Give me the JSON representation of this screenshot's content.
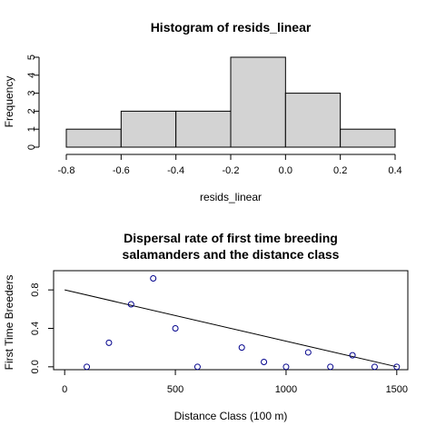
{
  "chart_data": [
    {
      "type": "histogram",
      "title": "Histogram of resids_linear",
      "xlabel": "resids_linear",
      "ylabel": "Frequency",
      "bins": [
        {
          "from": -0.8,
          "to": -0.6,
          "count": 1
        },
        {
          "from": -0.6,
          "to": -0.4,
          "count": 2
        },
        {
          "from": -0.4,
          "to": -0.2,
          "count": 2
        },
        {
          "from": -0.2,
          "to": 0.0,
          "count": 5
        },
        {
          "from": 0.0,
          "to": 0.2,
          "count": 3
        },
        {
          "from": 0.2,
          "to": 0.4,
          "count": 1
        }
      ],
      "xlim": [
        -0.8,
        0.4
      ],
      "ylim": [
        0,
        5
      ],
      "x_ticks": [
        "-0.8",
        "-0.6",
        "-0.4",
        "-0.2",
        "0.0",
        "0.2",
        "0.4"
      ],
      "y_ticks": [
        "0",
        "1",
        "2",
        "3",
        "4",
        "5"
      ],
      "bar_color": "#d3d3d3",
      "grid": false
    },
    {
      "type": "scatter",
      "title_lines": [
        "Dispersal rate of first time breeding",
        "salamanders and the distance class"
      ],
      "xlabel": "Distance Class (100 m)",
      "ylabel": "First Time Breeders",
      "points": [
        {
          "x": 100,
          "y": 0.0
        },
        {
          "x": 200,
          "y": 0.25
        },
        {
          "x": 300,
          "y": 0.65
        },
        {
          "x": 400,
          "y": 0.92
        },
        {
          "x": 500,
          "y": 0.4
        },
        {
          "x": 600,
          "y": 0.0
        },
        {
          "x": 800,
          "y": 0.2
        },
        {
          "x": 900,
          "y": 0.05
        },
        {
          "x": 1000,
          "y": 0.0
        },
        {
          "x": 1100,
          "y": 0.15
        },
        {
          "x": 1200,
          "y": 0.0
        },
        {
          "x": 1300,
          "y": 0.12
        },
        {
          "x": 1400,
          "y": 0.0
        },
        {
          "x": 1500,
          "y": 0.0
        }
      ],
      "fit_line": {
        "x": [
          0,
          1500
        ],
        "y": [
          0.8,
          0.0
        ]
      },
      "xlim": [
        -50,
        1550
      ],
      "ylim": [
        -0.03,
        1.0
      ],
      "x_ticks": [
        {
          "v": 0,
          "label": "0"
        },
        {
          "v": 500,
          "label": "500"
        },
        {
          "v": 1000,
          "label": "1000"
        },
        {
          "v": 1500,
          "label": "1500"
        }
      ],
      "y_ticks": [
        {
          "v": 0,
          "label": "0.0"
        },
        {
          "v": 0.4,
          "label": "0.4"
        },
        {
          "v": 0.8,
          "label": "0.8"
        }
      ],
      "point_color": "#00008b",
      "grid": false
    }
  ]
}
